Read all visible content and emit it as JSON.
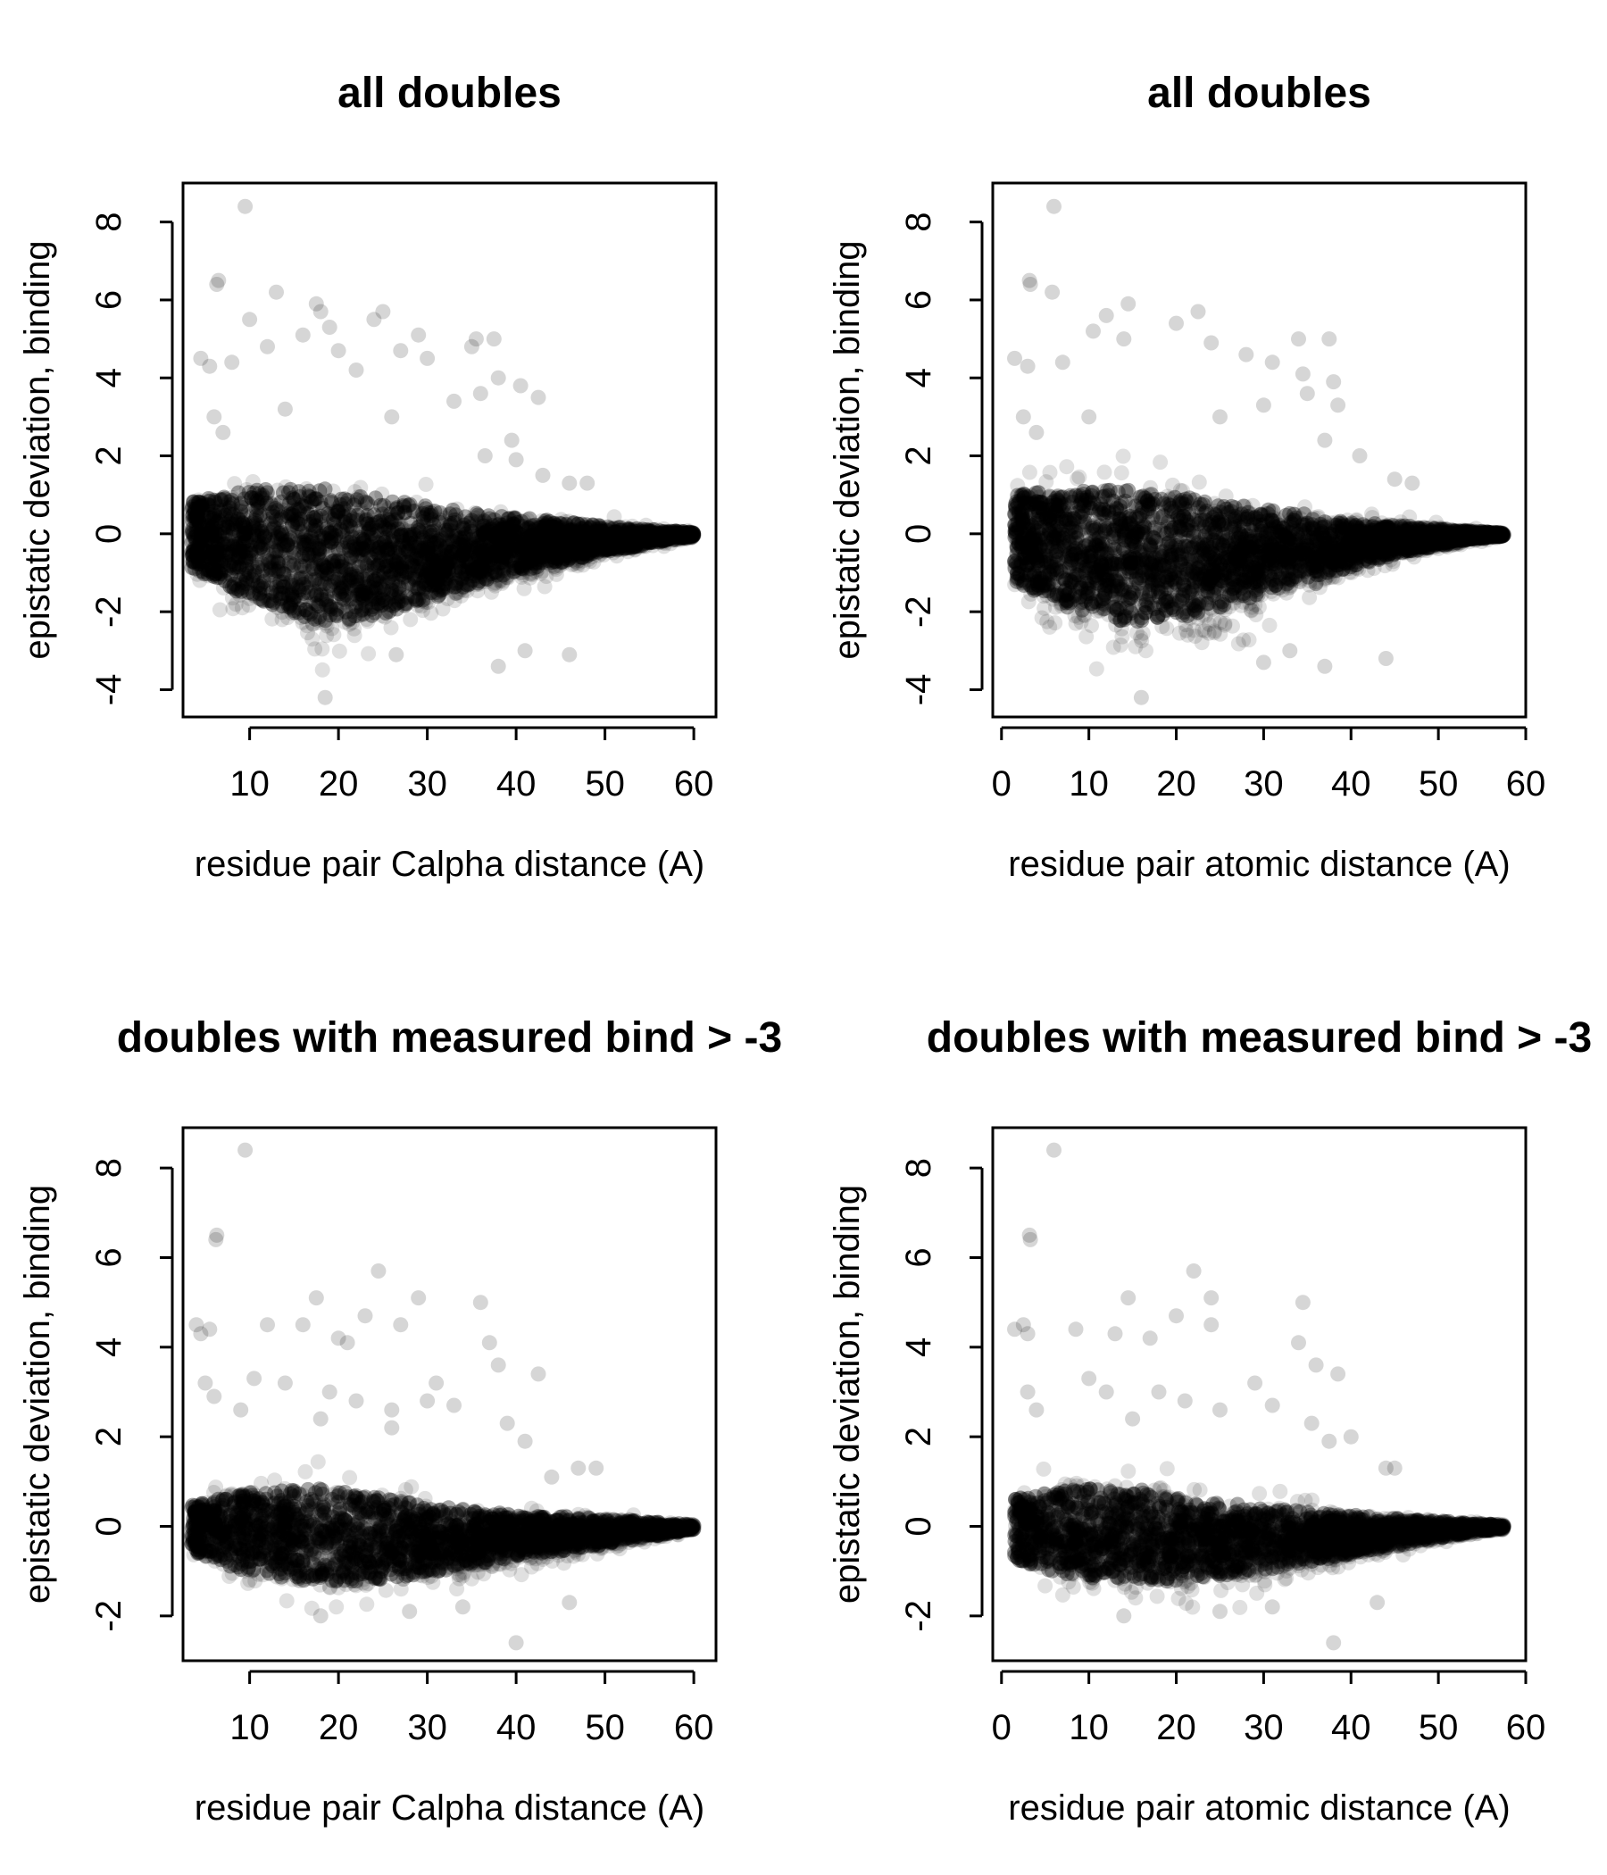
{
  "chart_data": [
    {
      "type": "scatter",
      "title": "all doubles",
      "xlabel": "residue pair Calpha distance (A)",
      "ylabel": "epistatic deviation, binding",
      "xlim": [
        2.5,
        62.5
      ],
      "ylim": [
        -4.7,
        9.0
      ],
      "xticks": [
        10,
        20,
        30,
        40,
        50,
        60
      ],
      "yticks": [
        -4,
        -2,
        0,
        2,
        4,
        6,
        8
      ],
      "grid": false,
      "point_color": "#000000",
      "point_alpha": 0.12,
      "density": {
        "x_start": 3.5,
        "x_end": 60,
        "core_top": [
          [
            4,
            1.2
          ],
          [
            10,
            1.6
          ],
          [
            18,
            1.7
          ],
          [
            25,
            1.3
          ],
          [
            32,
            0.9
          ],
          [
            40,
            0.6
          ],
          [
            50,
            0.3
          ],
          [
            58,
            0.1
          ],
          [
            60,
            0.05
          ]
        ],
        "core_bottom": [
          [
            4,
            -1.3
          ],
          [
            10,
            -2.5
          ],
          [
            18,
            -3.3
          ],
          [
            25,
            -3.0
          ],
          [
            32,
            -2.2
          ],
          [
            40,
            -1.4
          ],
          [
            50,
            -0.7
          ],
          [
            58,
            -0.2
          ],
          [
            60,
            -0.1
          ]
        ],
        "n_points": 2600
      },
      "outliers": [
        [
          9.5,
          8.4
        ],
        [
          6.5,
          6.5
        ],
        [
          6.3,
          6.4
        ],
        [
          13,
          6.2
        ],
        [
          17.5,
          5.9
        ],
        [
          18,
          5.7
        ],
        [
          25,
          5.7
        ],
        [
          24,
          5.5
        ],
        [
          10,
          5.5
        ],
        [
          19,
          5.3
        ],
        [
          29,
          5.1
        ],
        [
          16,
          5.1
        ],
        [
          35.5,
          5.0
        ],
        [
          37.5,
          5.0
        ],
        [
          35,
          4.8
        ],
        [
          12,
          4.8
        ],
        [
          20,
          4.7
        ],
        [
          27,
          4.7
        ],
        [
          30,
          4.5
        ],
        [
          4.5,
          4.5
        ],
        [
          5.5,
          4.3
        ],
        [
          8,
          4.4
        ],
        [
          22,
          4.2
        ],
        [
          38,
          4.0
        ],
        [
          40.5,
          3.8
        ],
        [
          36,
          3.6
        ],
        [
          42.5,
          3.5
        ],
        [
          33,
          3.4
        ],
        [
          14,
          3.2
        ],
        [
          26,
          3.0
        ],
        [
          39.5,
          2.4
        ],
        [
          36.5,
          2.0
        ],
        [
          43,
          1.5
        ],
        [
          46,
          1.3
        ],
        [
          48,
          1.3
        ],
        [
          40,
          1.9
        ],
        [
          6,
          3.0
        ],
        [
          7,
          2.6
        ],
        [
          26.5,
          -3.1
        ],
        [
          46,
          -3.1
        ],
        [
          18.5,
          -4.2
        ],
        [
          41,
          -3.0
        ],
        [
          38,
          -3.4
        ]
      ]
    },
    {
      "type": "scatter",
      "title": "all doubles",
      "xlabel": "residue pair atomic distance (A)",
      "ylabel": "epistatic deviation, binding",
      "xlim": [
        -1,
        60
      ],
      "ylim": [
        -4.7,
        9.0
      ],
      "xticks": [
        0,
        10,
        20,
        30,
        40,
        50,
        60
      ],
      "yticks": [
        -4,
        -2,
        0,
        2,
        4,
        6,
        8
      ],
      "grid": false,
      "point_color": "#000000",
      "point_alpha": 0.12,
      "density": {
        "x_start": 1.5,
        "x_end": 57.5,
        "core_top": [
          [
            2,
            1.5
          ],
          [
            8,
            1.6
          ],
          [
            15,
            1.7
          ],
          [
            22,
            1.3
          ],
          [
            30,
            0.9
          ],
          [
            38,
            0.6
          ],
          [
            46,
            0.3
          ],
          [
            54,
            0.1
          ],
          [
            57,
            0.05
          ]
        ],
        "core_bottom": [
          [
            2,
            -1.8
          ],
          [
            8,
            -2.8
          ],
          [
            15,
            -3.3
          ],
          [
            22,
            -3.0
          ],
          [
            30,
            -2.2
          ],
          [
            38,
            -1.4
          ],
          [
            46,
            -0.7
          ],
          [
            54,
            -0.2
          ],
          [
            57,
            -0.1
          ]
        ],
        "n_points": 2600
      },
      "outliers": [
        [
          6,
          8.4
        ],
        [
          3.2,
          6.5
        ],
        [
          3.3,
          6.4
        ],
        [
          5.8,
          6.2
        ],
        [
          14.5,
          5.9
        ],
        [
          12,
          5.6
        ],
        [
          22.5,
          5.7
        ],
        [
          20,
          5.4
        ],
        [
          10.5,
          5.2
        ],
        [
          14,
          5.0
        ],
        [
          24,
          4.9
        ],
        [
          34,
          5.0
        ],
        [
          37.5,
          5.0
        ],
        [
          28,
          4.6
        ],
        [
          1.5,
          4.5
        ],
        [
          3,
          4.3
        ],
        [
          7,
          4.4
        ],
        [
          31,
          4.4
        ],
        [
          34.5,
          4.1
        ],
        [
          38,
          3.9
        ],
        [
          35,
          3.6
        ],
        [
          38.5,
          3.3
        ],
        [
          30,
          3.3
        ],
        [
          10,
          3.0
        ],
        [
          25,
          3.0
        ],
        [
          37,
          2.4
        ],
        [
          41,
          2.0
        ],
        [
          45,
          1.4
        ],
        [
          47,
          1.3
        ],
        [
          2.5,
          3.0
        ],
        [
          4,
          2.6
        ],
        [
          16,
          -4.2
        ],
        [
          30,
          -3.3
        ],
        [
          44,
          -3.2
        ],
        [
          37,
          -3.4
        ],
        [
          33,
          -3.0
        ]
      ]
    },
    {
      "type": "scatter",
      "title": "doubles with measured bind > -3",
      "xlabel": "residue pair Calpha distance (A)",
      "ylabel": "epistatic deviation, binding",
      "xlim": [
        2.5,
        62.5
      ],
      "ylim": [
        -3.0,
        8.9
      ],
      "xticks": [
        10,
        20,
        30,
        40,
        50,
        60
      ],
      "yticks": [
        -2,
        0,
        2,
        4,
        6,
        8
      ],
      "grid": false,
      "point_color": "#000000",
      "point_alpha": 0.12,
      "density": {
        "x_start": 3.5,
        "x_end": 60,
        "core_top": [
          [
            4,
            0.7
          ],
          [
            10,
            1.1
          ],
          [
            18,
            1.2
          ],
          [
            25,
            0.9
          ],
          [
            32,
            0.6
          ],
          [
            40,
            0.4
          ],
          [
            50,
            0.25
          ],
          [
            58,
            0.1
          ],
          [
            60,
            0.05
          ]
        ],
        "core_bottom": [
          [
            4,
            -0.9
          ],
          [
            10,
            -1.5
          ],
          [
            18,
            -1.8
          ],
          [
            25,
            -1.7
          ],
          [
            32,
            -1.4
          ],
          [
            40,
            -1.0
          ],
          [
            50,
            -0.6
          ],
          [
            58,
            -0.2
          ],
          [
            60,
            -0.1
          ]
        ],
        "n_points": 2200
      },
      "outliers": [
        [
          9.5,
          8.4
        ],
        [
          6.3,
          6.5
        ],
        [
          6.2,
          6.4
        ],
        [
          24.5,
          5.7
        ],
        [
          17.5,
          5.1
        ],
        [
          29,
          5.1
        ],
        [
          36,
          5.0
        ],
        [
          23,
          4.7
        ],
        [
          27,
          4.5
        ],
        [
          4,
          4.5
        ],
        [
          4.5,
          4.3
        ],
        [
          5.5,
          4.4
        ],
        [
          12,
          4.5
        ],
        [
          16,
          4.5
        ],
        [
          20,
          4.2
        ],
        [
          21,
          4.1
        ],
        [
          37,
          4.1
        ],
        [
          38,
          3.6
        ],
        [
          42.5,
          3.4
        ],
        [
          31,
          3.2
        ],
        [
          33,
          2.7
        ],
        [
          14,
          3.2
        ],
        [
          10.5,
          3.3
        ],
        [
          19,
          3.0
        ],
        [
          22,
          2.8
        ],
        [
          26,
          2.6
        ],
        [
          30,
          2.8
        ],
        [
          5,
          3.2
        ],
        [
          6,
          2.9
        ],
        [
          9,
          2.6
        ],
        [
          18,
          2.4
        ],
        [
          26,
          2.2
        ],
        [
          39,
          2.3
        ],
        [
          41,
          1.9
        ],
        [
          40,
          -2.6
        ],
        [
          46,
          -1.7
        ],
        [
          18,
          -2.0
        ],
        [
          28,
          -1.9
        ],
        [
          34,
          -1.8
        ],
        [
          44,
          1.1
        ],
        [
          47,
          1.3
        ],
        [
          49,
          1.3
        ]
      ]
    },
    {
      "type": "scatter",
      "title": "doubles with measured bind > -3",
      "xlabel": "residue pair atomic distance (A)",
      "ylabel": "epistatic deviation, binding",
      "xlim": [
        -1,
        60
      ],
      "ylim": [
        -3.0,
        8.9
      ],
      "xticks": [
        0,
        10,
        20,
        30,
        40,
        50,
        60
      ],
      "yticks": [
        -2,
        0,
        2,
        4,
        6,
        8
      ],
      "grid": false,
      "point_color": "#000000",
      "point_alpha": 0.12,
      "density": {
        "x_start": 1.5,
        "x_end": 57.5,
        "core_top": [
          [
            2,
            0.9
          ],
          [
            8,
            1.2
          ],
          [
            15,
            1.2
          ],
          [
            22,
            0.9
          ],
          [
            30,
            0.6
          ],
          [
            38,
            0.4
          ],
          [
            46,
            0.25
          ],
          [
            54,
            0.1
          ],
          [
            57,
            0.05
          ]
        ],
        "core_bottom": [
          [
            2,
            -1.1
          ],
          [
            8,
            -1.6
          ],
          [
            15,
            -1.8
          ],
          [
            22,
            -1.7
          ],
          [
            30,
            -1.4
          ],
          [
            38,
            -1.0
          ],
          [
            46,
            -0.6
          ],
          [
            54,
            -0.2
          ],
          [
            57,
            -0.1
          ]
        ],
        "n_points": 2200
      },
      "outliers": [
        [
          6,
          8.4
        ],
        [
          3.2,
          6.5
        ],
        [
          3.3,
          6.4
        ],
        [
          22,
          5.7
        ],
        [
          14.5,
          5.1
        ],
        [
          24,
          5.1
        ],
        [
          34.5,
          5.0
        ],
        [
          20,
          4.7
        ],
        [
          24,
          4.5
        ],
        [
          1.5,
          4.4
        ],
        [
          2.5,
          4.5
        ],
        [
          3,
          4.3
        ],
        [
          8.5,
          4.4
        ],
        [
          13,
          4.3
        ],
        [
          17,
          4.2
        ],
        [
          34,
          4.1
        ],
        [
          36,
          3.6
        ],
        [
          38.5,
          3.4
        ],
        [
          29,
          3.2
        ],
        [
          31,
          2.7
        ],
        [
          10,
          3.3
        ],
        [
          12,
          3.0
        ],
        [
          18,
          3.0
        ],
        [
          21,
          2.8
        ],
        [
          25,
          2.6
        ],
        [
          3,
          3.0
        ],
        [
          4,
          2.6
        ],
        [
          15,
          2.4
        ],
        [
          35.5,
          2.3
        ],
        [
          37.5,
          1.9
        ],
        [
          40,
          2.0
        ],
        [
          38,
          -2.6
        ],
        [
          43,
          -1.7
        ],
        [
          14,
          -2.0
        ],
        [
          25,
          -1.9
        ],
        [
          31,
          -1.8
        ],
        [
          44,
          1.3
        ],
        [
          45,
          1.3
        ]
      ]
    }
  ]
}
